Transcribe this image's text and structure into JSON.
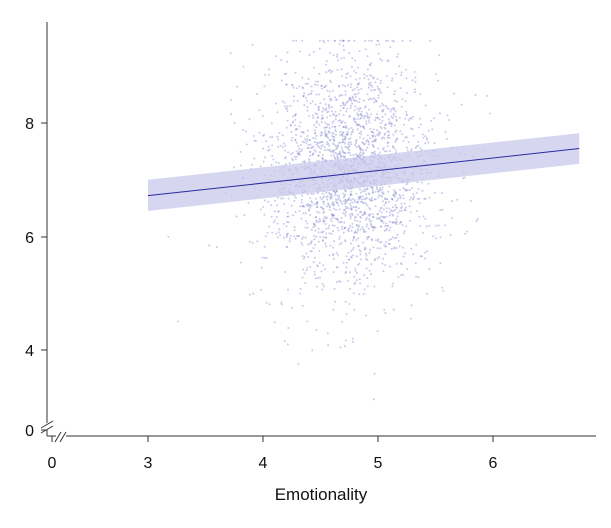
{
  "chart_data": {
    "type": "scatter",
    "title": "",
    "xlabel": "Emotionality",
    "ylabel": "",
    "x_ticks": [
      "0",
      "3",
      "4",
      "5",
      "6"
    ],
    "y_ticks": [
      "0",
      "4",
      "6",
      "8"
    ],
    "x_axis_break": true,
    "y_axis_break": true,
    "xlim": [
      2.7,
      7.0
    ],
    "ylim": [
      2.8,
      9.8
    ],
    "grid": false,
    "colors": {
      "points": "#8a8ad0",
      "line": "#2b2ba0",
      "band": "#c8c8eb",
      "axis": "#333333"
    },
    "points": {
      "count": 2200,
      "x_mean": 4.75,
      "x_sd": 0.38,
      "y_mean": 7.15,
      "y_sd": 1.05,
      "x_range": [
        2.97,
        6.77
      ],
      "y_range": [
        3.0,
        9.45
      ]
    },
    "regression": {
      "x": [
        3.0,
        6.75
      ],
      "y": [
        6.72,
        7.55
      ],
      "ci_lower": [
        6.45,
        7.28
      ],
      "ci_upper": [
        7.0,
        7.82
      ]
    }
  }
}
